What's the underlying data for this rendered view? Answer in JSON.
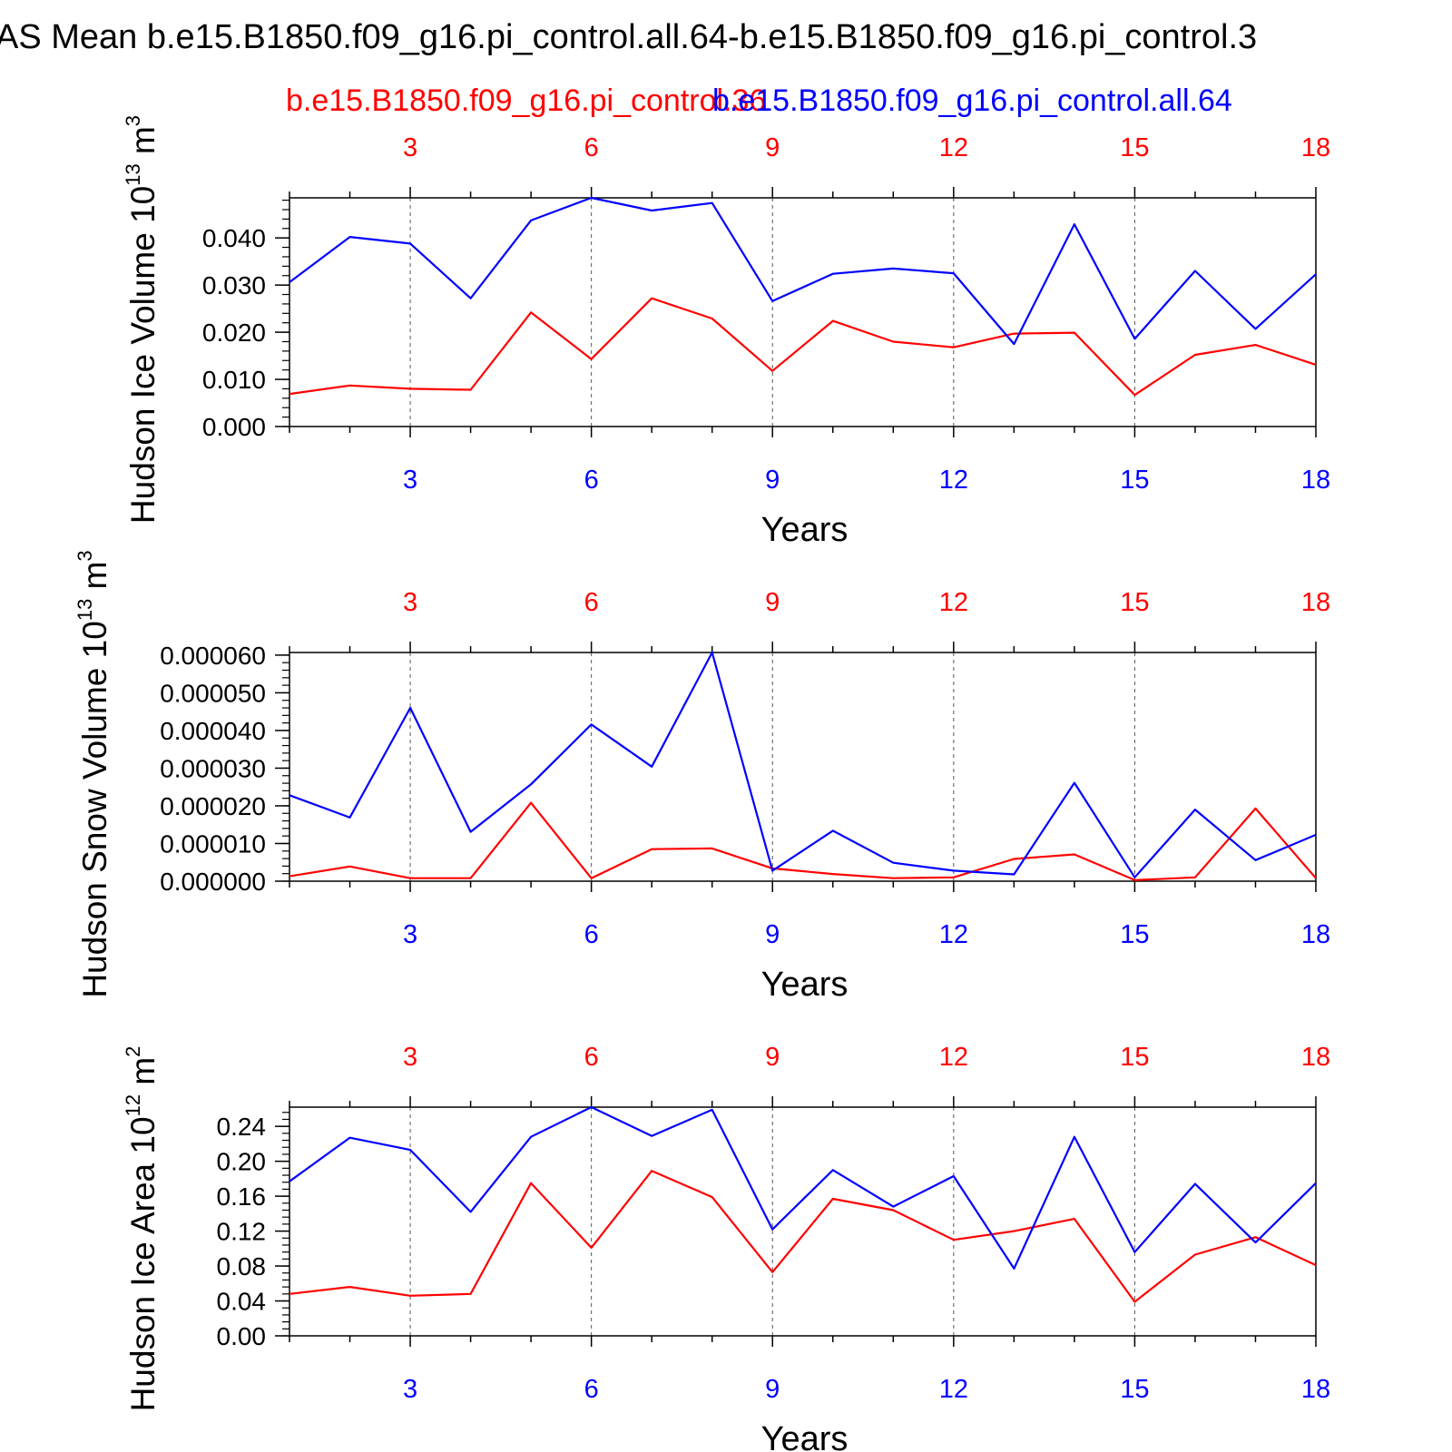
{
  "page_title": "AS Mean b.e15.B1850.f09_g16.pi_control.all.64-b.e15.B1850.f09_g16.pi_control.3",
  "legend": {
    "case_red": "b.e15.B1850.f09_g16.pi_control.36",
    "case_blue": "b.e15.B1850.f09_g16.pi_control.all.64"
  },
  "colors": {
    "red": "#ff0000",
    "blue": "#0000ff",
    "axis": "#000000",
    "grid": "#555555"
  },
  "chart_data": [
    {
      "type": "line",
      "title": "",
      "xlabel": "Years",
      "ylabel": "Hudson Ice Volume 10",
      "ylabel_exp": "13",
      "ylabel_unit": "m",
      "ylabel_unit_exp": "3",
      "xlim": [
        1,
        18
      ],
      "ylim": [
        0.0,
        0.0485
      ],
      "yticks": [
        0.0,
        0.01,
        0.02,
        0.03,
        0.04
      ],
      "yticklabels": [
        "0.000",
        "0.010",
        "0.020",
        "0.030",
        "0.040"
      ],
      "xticks": [
        3,
        6,
        9,
        12,
        15,
        18
      ],
      "xticklabels": [
        "3",
        "6",
        "9",
        "12",
        "15",
        "18"
      ],
      "x": [
        1,
        2,
        3,
        4,
        5,
        6,
        7,
        8,
        9,
        10,
        11,
        12,
        13,
        14,
        15,
        16,
        17,
        18
      ],
      "series": [
        {
          "name": "b.e15.B1850.f09_g16.pi_control.36",
          "color": "#ff0000",
          "values": [
            0.0069,
            0.0087,
            0.008,
            0.0078,
            0.0242,
            0.0143,
            0.0272,
            0.0229,
            0.0118,
            0.0224,
            0.018,
            0.0168,
            0.0197,
            0.0199,
            0.0067,
            0.0152,
            0.0173,
            0.0131
          ]
        },
        {
          "name": "b.e15.B1850.f09_g16.pi_control.all.64",
          "color": "#0000ff",
          "values": [
            0.0306,
            0.0402,
            0.0388,
            0.0272,
            0.0437,
            0.0485,
            0.0458,
            0.0474,
            0.0266,
            0.0324,
            0.0335,
            0.0325,
            0.0175,
            0.0429,
            0.0186,
            0.033,
            0.0207,
            0.0323
          ]
        }
      ]
    },
    {
      "type": "line",
      "title": "",
      "xlabel": "Years",
      "ylabel": "Hudson Snow Volume 10",
      "ylabel_exp": "13",
      "ylabel_unit": "m",
      "ylabel_unit_exp": "3",
      "xlim": [
        1,
        18
      ],
      "ylim": [
        0.0,
        6.07e-05
      ],
      "yticks": [
        0.0,
        1e-05,
        2e-05,
        3e-05,
        4e-05,
        5e-05,
        6e-05
      ],
      "yticklabels": [
        "0.000000",
        "0.000010",
        "0.000020",
        "0.000030",
        "0.000040",
        "0.000050",
        "0.000060"
      ],
      "xticks": [
        3,
        6,
        9,
        12,
        15,
        18
      ],
      "xticklabels": [
        "3",
        "6",
        "9",
        "12",
        "15",
        "18"
      ],
      "x": [
        1,
        2,
        3,
        4,
        5,
        6,
        7,
        8,
        9,
        10,
        11,
        12,
        13,
        14,
        15,
        16,
        17,
        18
      ],
      "series": [
        {
          "name": "b.e15.B1850.f09_g16.pi_control.36",
          "color": "#ff0000",
          "values": [
            1.3e-06,
            3.9e-06,
            8e-07,
            8e-07,
            2.08e-05,
            8e-07,
            8.5e-06,
            8.7e-06,
            3.4e-06,
            1.9e-06,
            8e-07,
            1e-06,
            5.9e-06,
            7.1e-06,
            3e-07,
            1e-06,
            1.93e-05,
            8e-07
          ]
        },
        {
          "name": "b.e15.B1850.f09_g16.pi_control.all.64",
          "color": "#0000ff",
          "values": [
            2.28e-05,
            1.69e-05,
            4.6e-05,
            1.31e-05,
            2.57e-05,
            4.16e-05,
            3.04e-05,
            6.07e-05,
            2.8e-06,
            1.34e-05,
            4.9e-06,
            2.8e-06,
            1.8e-06,
            2.61e-05,
            1e-06,
            1.9e-05,
            5.6e-06,
            1.23e-05
          ]
        }
      ]
    },
    {
      "type": "line",
      "title": "",
      "xlabel": "Years",
      "ylabel": "Hudson Ice Area 10",
      "ylabel_exp": "12",
      "ylabel_unit": "m",
      "ylabel_unit_exp": "2",
      "xlim": [
        1,
        18
      ],
      "ylim": [
        0.0,
        0.262
      ],
      "yticks": [
        0.0,
        0.04,
        0.08,
        0.12,
        0.16,
        0.2,
        0.24
      ],
      "yticklabels": [
        "0.00",
        "0.04",
        "0.08",
        "0.12",
        "0.16",
        "0.20",
        "0.24"
      ],
      "xticks": [
        3,
        6,
        9,
        12,
        15,
        18
      ],
      "xticklabels": [
        "3",
        "6",
        "9",
        "12",
        "15",
        "18"
      ],
      "x": [
        1,
        2,
        3,
        4,
        5,
        6,
        7,
        8,
        9,
        10,
        11,
        12,
        13,
        14,
        15,
        16,
        17,
        18
      ],
      "series": [
        {
          "name": "b.e15.B1850.f09_g16.pi_control.36",
          "color": "#ff0000",
          "values": [
            0.048,
            0.056,
            0.046,
            0.048,
            0.175,
            0.101,
            0.189,
            0.159,
            0.073,
            0.157,
            0.144,
            0.11,
            0.12,
            0.134,
            0.039,
            0.093,
            0.113,
            0.081
          ]
        },
        {
          "name": "b.e15.B1850.f09_g16.pi_control.all.64",
          "color": "#0000ff",
          "values": [
            0.177,
            0.227,
            0.213,
            0.142,
            0.228,
            0.262,
            0.229,
            0.259,
            0.122,
            0.19,
            0.148,
            0.183,
            0.077,
            0.228,
            0.096,
            0.174,
            0.107,
            0.175
          ]
        }
      ]
    }
  ]
}
